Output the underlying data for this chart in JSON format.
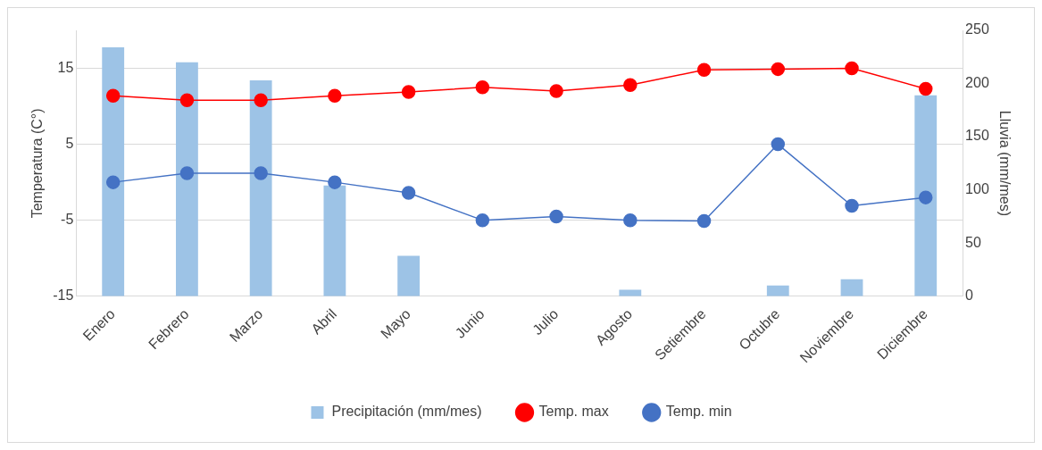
{
  "chart_data": {
    "type": "bar",
    "xlabel": null,
    "ylabel": "Temperatura (C°)",
    "y2label": "Lluvia (mm/mes)",
    "categories": [
      "Enero",
      "Febrero",
      "Marzo",
      "Abril",
      "Mayo",
      "Junio",
      "Julio",
      "Agosto",
      "Setiembre",
      "Octubre",
      "Noviembre",
      "Diciembre"
    ],
    "series": [
      {
        "name": "Precipitación (mm/mes)",
        "axis": "y2",
        "color": "#9dc3e6",
        "values": [
          234,
          220,
          203,
          104,
          38,
          0,
          0,
          6,
          0,
          10,
          16,
          189
        ]
      },
      {
        "name": "Temp. max",
        "type": "line",
        "color": "#ff0000",
        "values": [
          11.4,
          10.8,
          10.8,
          11.4,
          11.9,
          12.5,
          12.0,
          12.8,
          14.8,
          14.9,
          15.0,
          12.3
        ]
      },
      {
        "name": "Temp. min",
        "type": "line",
        "color": "#4472c4",
        "values": [
          0,
          1.2,
          1.2,
          0,
          -1.4,
          -5.0,
          -4.5,
          -5.0,
          -5.1,
          5.0,
          -3.1,
          -2.0
        ]
      }
    ],
    "ylim": [
      -15,
      20
    ],
    "yticks": [
      -15,
      -5,
      5,
      15
    ],
    "y2lim": [
      0,
      250
    ],
    "y2ticks": [
      0,
      50,
      100,
      150,
      200,
      250
    ],
    "grid": "y",
    "legend": "bottom",
    "marker": "circle",
    "line_style": "solid"
  }
}
